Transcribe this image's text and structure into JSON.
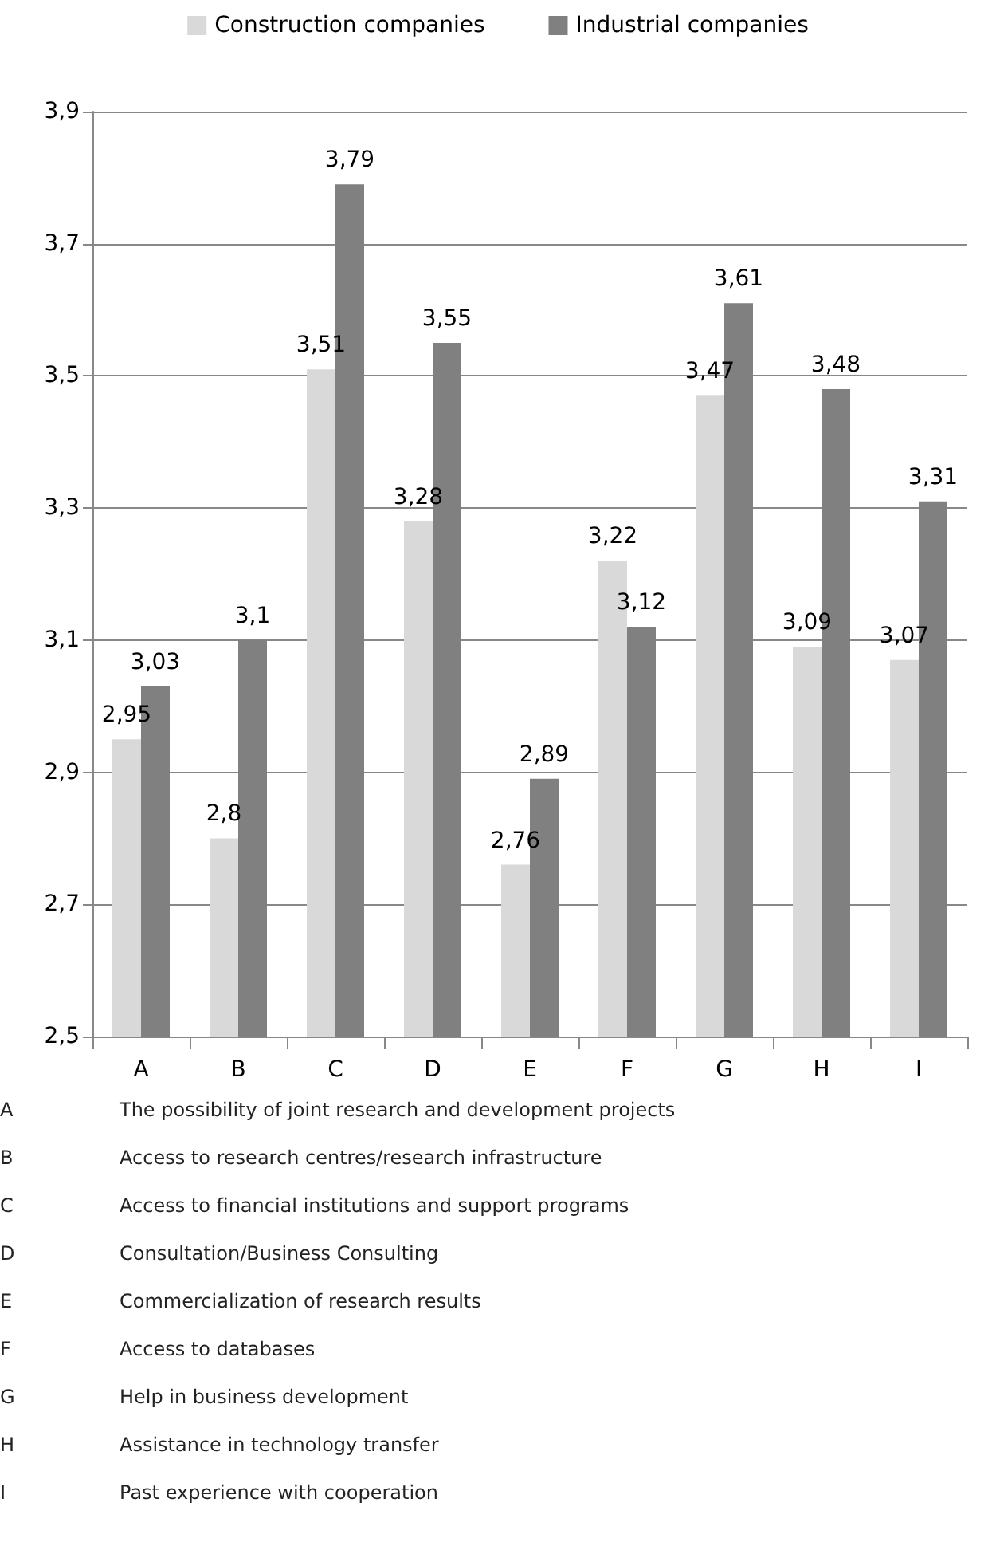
{
  "chart_data": {
    "type": "bar",
    "categories": [
      "A",
      "B",
      "C",
      "D",
      "E",
      "F",
      "G",
      "H",
      "I"
    ],
    "series": [
      {
        "name": "Construction companies",
        "color": "#d9d9d9",
        "values": [
          2.95,
          2.8,
          3.51,
          3.28,
          2.76,
          3.22,
          3.47,
          3.09,
          3.07
        ],
        "value_labels": [
          "2,95",
          "2,8",
          "3,51",
          "3,28",
          "2,76",
          "3,22",
          "3,47",
          "3,09",
          "3,07"
        ]
      },
      {
        "name": "Industrial companies",
        "color": "#808080",
        "values": [
          3.03,
          3.1,
          3.79,
          3.55,
          2.89,
          3.12,
          3.61,
          3.48,
          3.31
        ],
        "value_labels": [
          "3,03",
          "3,1",
          "3,79",
          "3,55",
          "2,89",
          "3,12",
          "3,61",
          "3,48",
          "3,31"
        ]
      }
    ],
    "ylim": [
      2.5,
      3.9
    ],
    "yticks": [
      {
        "value": 2.5,
        "label": "2,5"
      },
      {
        "value": 2.7,
        "label": "2,7"
      },
      {
        "value": 2.9,
        "label": "2,9"
      },
      {
        "value": 3.1,
        "label": "3,1"
      },
      {
        "value": 3.3,
        "label": "3,3"
      },
      {
        "value": 3.5,
        "label": "3,5"
      },
      {
        "value": 3.7,
        "label": "3,7"
      },
      {
        "value": 3.9,
        "label": "3,9"
      }
    ],
    "grid": "y",
    "legend": "top",
    "annotations": [
      "The possibility of joint research and development projects",
      "Access to research centres/research infrastructure",
      "Access to financial institutions and support programs",
      "Consultation/Business Consulting",
      "Commercialization of research results",
      "Access to databases",
      "Help in business development",
      "Assistance in technology transfer",
      "Past experience with cooperation"
    ]
  }
}
